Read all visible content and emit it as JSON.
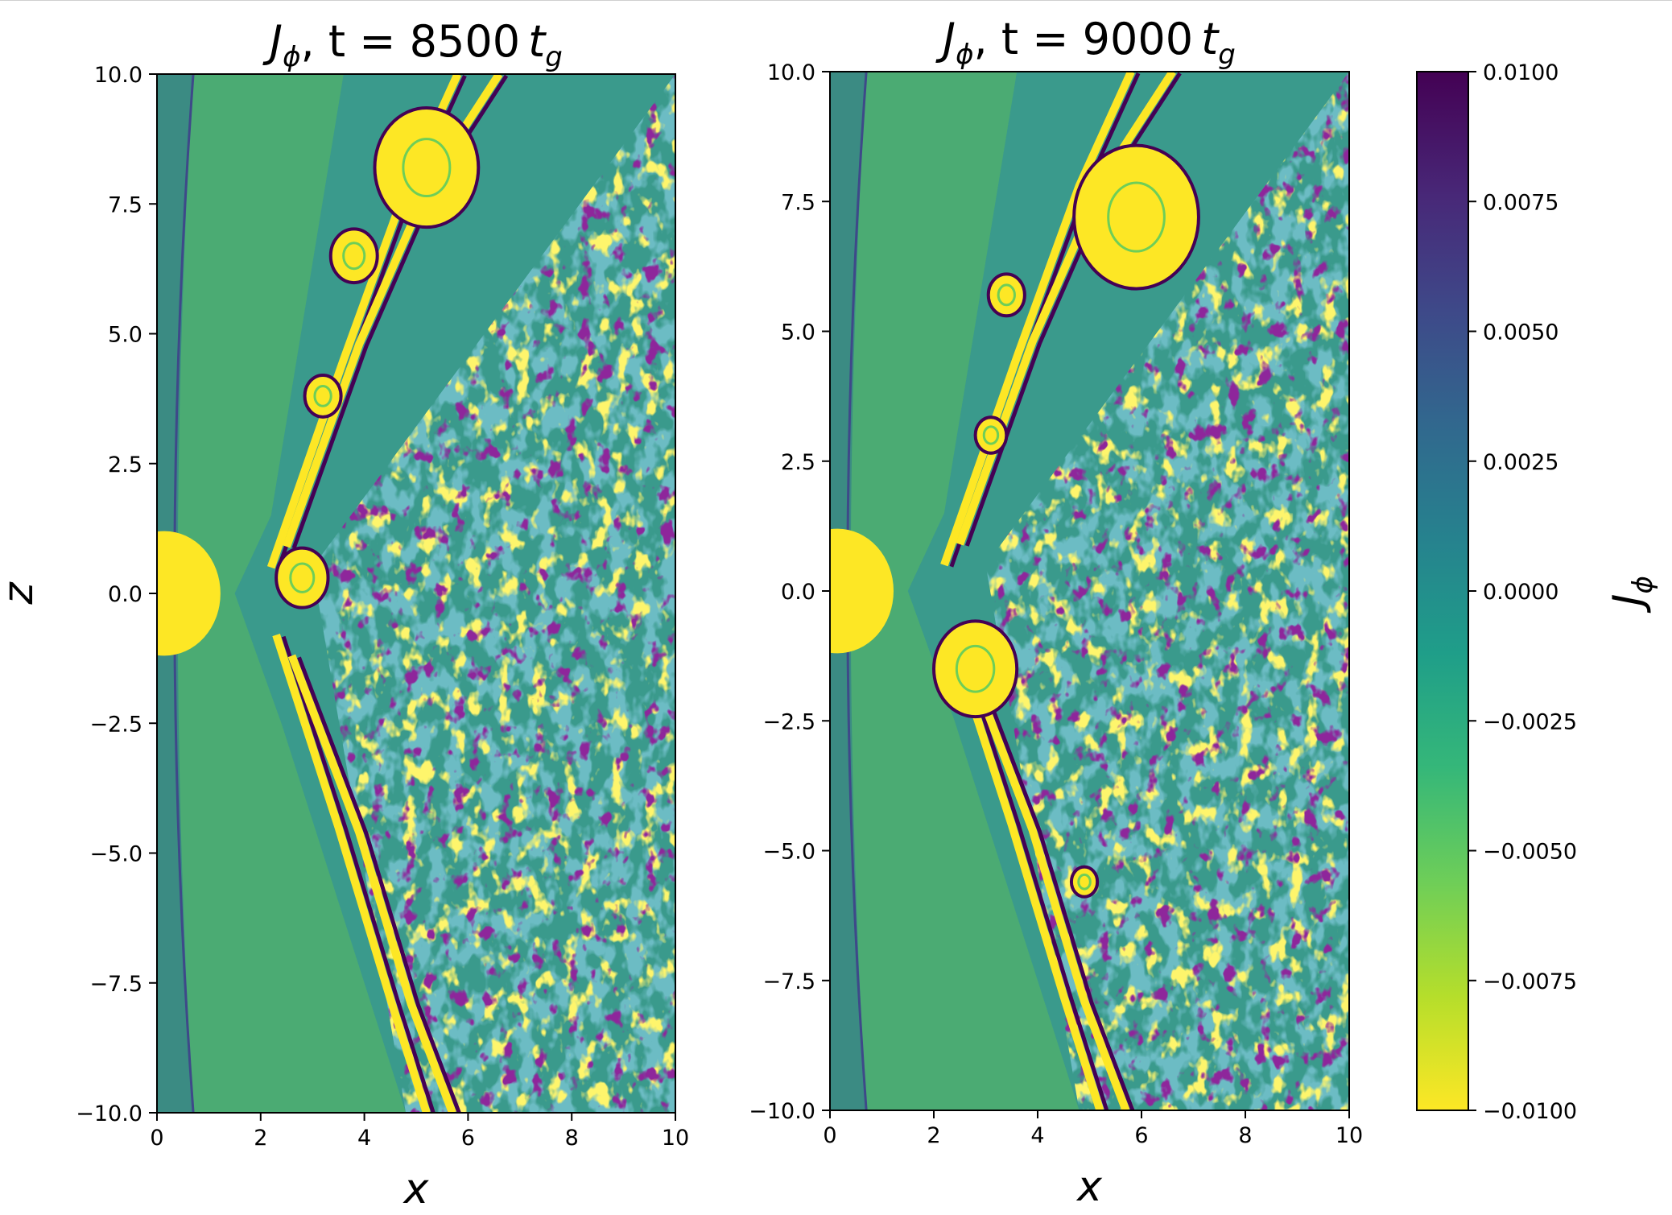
{
  "chart_data": [
    {
      "type": "heatmap",
      "title_var": "J",
      "title_sub": "ϕ",
      "title_time": "t = 8500",
      "title_unit": "t",
      "title_unit_sub": "g",
      "xlabel": "x",
      "ylabel": "z",
      "xlim": [
        0,
        10
      ],
      "ylim": [
        -10,
        10
      ],
      "xticks": [
        0,
        2,
        4,
        6,
        8,
        10
      ],
      "yticks": [
        -10.0,
        -7.5,
        -5.0,
        -2.5,
        0.0,
        2.5,
        5.0,
        7.5,
        10.0
      ],
      "xtick_labels": [
        "0",
        "2",
        "4",
        "6",
        "8",
        "10"
      ],
      "ytick_labels": [
        "−10.0",
        "−7.5",
        "−5.0",
        "−2.5",
        "0.0",
        "2.5",
        "5.0",
        "7.5",
        "10.0"
      ],
      "colormap": "viridis_r",
      "features": {
        "inner_boundary_x": [
          0.1,
          0.7
        ],
        "yellow_core": {
          "x": 0.3,
          "z": 0.0,
          "radius": 1.2
        },
        "plasmoids": [
          {
            "x": 2.8,
            "z": 0.3,
            "radius": 0.5
          },
          {
            "x": 3.2,
            "z": 3.8,
            "radius": 0.35
          },
          {
            "x": 3.8,
            "z": 6.5,
            "radius": 0.45
          },
          {
            "x": 5.2,
            "z": 8.2,
            "radius": 1.0
          }
        ],
        "turbulent_region_x": [
          3.5,
          10
        ]
      }
    },
    {
      "type": "heatmap",
      "title_var": "J",
      "title_sub": "ϕ",
      "title_time": "t = 9000",
      "title_unit": "t",
      "title_unit_sub": "g",
      "xlabel": "x",
      "ylabel": "",
      "xlim": [
        0,
        10
      ],
      "ylim": [
        -10,
        10
      ],
      "xticks": [
        0,
        2,
        4,
        6,
        8,
        10
      ],
      "yticks": [
        -10.0,
        -7.5,
        -5.0,
        -2.5,
        0.0,
        2.5,
        5.0,
        7.5,
        10.0
      ],
      "xtick_labels": [
        "0",
        "2",
        "4",
        "6",
        "8",
        "10"
      ],
      "ytick_labels": [
        "−10.0",
        "−7.5",
        "−5.0",
        "−2.5",
        "0.0",
        "2.5",
        "5.0",
        "7.5",
        "10.0"
      ],
      "colormap": "viridis_r",
      "features": {
        "inner_boundary_x": [
          0.1,
          0.7
        ],
        "yellow_core": {
          "x": 0.3,
          "z": 0.0,
          "radius": 1.2
        },
        "plasmoids": [
          {
            "x": 2.8,
            "z": -1.5,
            "radius": 0.8
          },
          {
            "x": 4.9,
            "z": -5.6,
            "radius": 0.25
          },
          {
            "x": 3.1,
            "z": 3.0,
            "radius": 0.3
          },
          {
            "x": 3.4,
            "z": 5.7,
            "radius": 0.35
          },
          {
            "x": 5.9,
            "z": 7.2,
            "radius": 1.2
          }
        ],
        "turbulent_region_x": [
          3.5,
          10
        ]
      }
    }
  ],
  "colorbar": {
    "label_var": "J",
    "label_sub": "ϕ",
    "min": -0.01,
    "max": 0.01,
    "ticks": [
      0.01,
      0.0075,
      0.005,
      0.0025,
      0.0,
      -0.0025,
      -0.005,
      -0.0075,
      -0.01
    ],
    "tick_labels": [
      "0.0100",
      "0.0075",
      "0.0050",
      "0.0025",
      "0.0000",
      "−0.0025",
      "−0.0050",
      "−0.0075",
      "−0.0100"
    ],
    "colors": [
      "#fde725",
      "#b5de2b",
      "#6ece58",
      "#35b779",
      "#1f9e89",
      "#26828e",
      "#31688e",
      "#3e4989",
      "#482878",
      "#440154"
    ]
  }
}
